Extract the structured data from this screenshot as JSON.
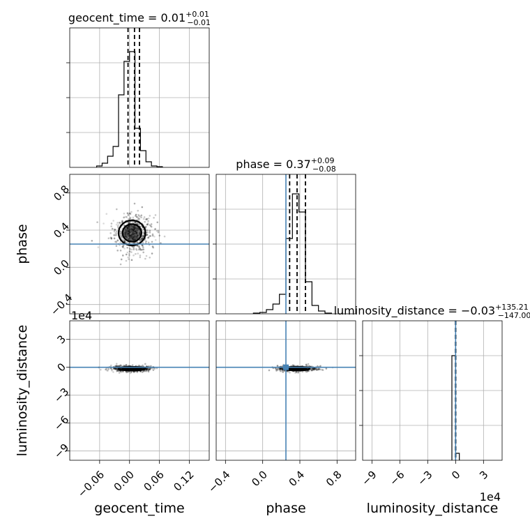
{
  "chart_data": {
    "type": "corner",
    "parameters": [
      "geocent_time",
      "phase",
      "luminosity_distance"
    ],
    "axis_labels": {
      "geocent_time": "geocent_time",
      "phase": "phase",
      "luminosity_distance": "luminosity_distance"
    },
    "titles": {
      "geocent_time": {
        "main": "geocent_time = 0.01",
        "sup": "+0.01",
        "sub": "−0.01"
      },
      "phase": {
        "main": "phase = 0.37",
        "sup": "+0.09",
        "sub": "−0.08"
      },
      "luminosity_distance": {
        "main": "luminosity_distance = −0.03",
        "sup": "+135.21",
        "sub": "−147.00"
      }
    },
    "offset_text": "1e4",
    "ranges": {
      "geocent_time": [
        -0.12,
        0.16
      ],
      "phase": [
        -0.5,
        1.0
      ],
      "luminosity_distance": [
        -100000,
        50000
      ]
    },
    "ticks": {
      "geocent_time": {
        "values": [
          -0.06,
          0.0,
          0.06,
          0.12
        ],
        "labels": [
          "−0.06",
          "0.00",
          "0.06",
          "0.12"
        ]
      },
      "phase": {
        "values": [
          -0.4,
          0.0,
          0.4,
          0.8
        ],
        "labels": [
          "−0.4",
          "0.0",
          "0.4",
          "0.8"
        ]
      },
      "luminosity_distance": {
        "values": [
          -90000,
          -60000,
          -30000,
          0,
          30000
        ],
        "labels": [
          "−9",
          "−6",
          "−3",
          "0",
          "3"
        ]
      }
    },
    "quantiles": {
      "geocent_time": [
        -0.003,
        0.01,
        0.02
      ],
      "phase": [
        0.29,
        0.37,
        0.46
      ],
      "luminosity_distance": [
        -147,
        -0.03,
        135
      ]
    },
    "truths": {
      "geocent_time": null,
      "phase": 0.25,
      "luminosity_distance": 0
    },
    "marginals": {
      "geocent_time": {
        "edges": [
          -0.066,
          -0.055,
          -0.044,
          -0.033,
          -0.022,
          -0.011,
          0.0,
          0.011,
          0.022,
          0.033,
          0.044,
          0.055,
          0.066
        ],
        "counts": [
          0.01,
          0.03,
          0.08,
          0.15,
          0.52,
          0.76,
          0.83,
          0.28,
          0.12,
          0.04,
          0.01,
          0.005
        ]
      },
      "phase": {
        "edges": [
          -0.1,
          -0.03,
          0.04,
          0.11,
          0.18,
          0.25,
          0.32,
          0.39,
          0.46,
          0.53,
          0.6,
          0.67,
          0.74
        ],
        "counts": [
          0.005,
          0.01,
          0.03,
          0.07,
          0.14,
          0.54,
          0.86,
          0.73,
          0.23,
          0.06,
          0.02,
          0.005
        ]
      },
      "luminosity_distance": {
        "edges": [
          -4000,
          0,
          4000
        ],
        "counts": [
          0.75,
          0.05
        ]
      }
    },
    "grid": true
  }
}
